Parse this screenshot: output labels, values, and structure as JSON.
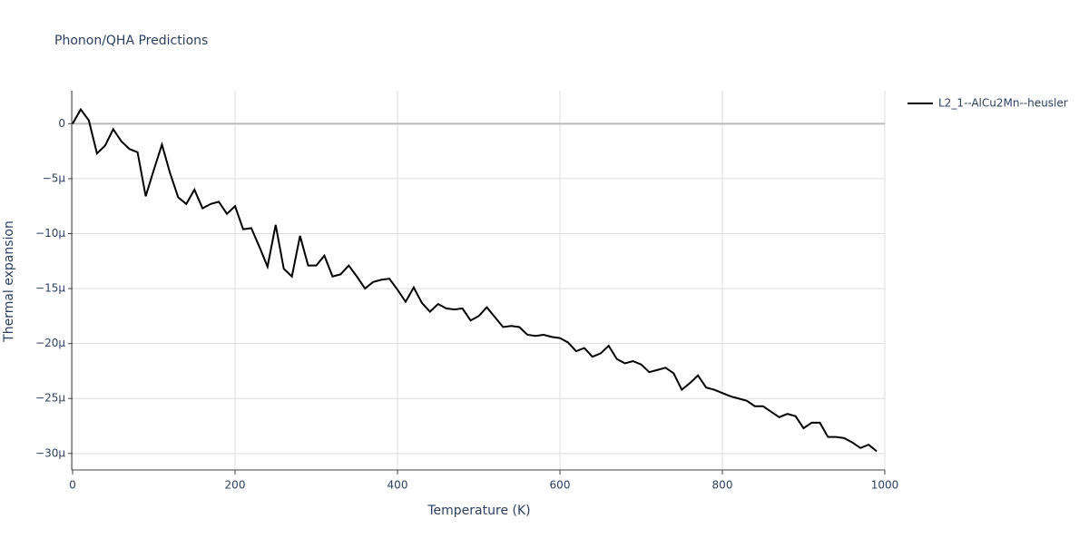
{
  "chart_data": {
    "type": "line",
    "title": "Phonon/QHA Predictions",
    "x_label": "Temperature (K)",
    "y_label": "Thermal expansion",
    "x": [
      0,
      10,
      20,
      30,
      40,
      50,
      60,
      70,
      80,
      90,
      100,
      110,
      120,
      130,
      140,
      150,
      160,
      170,
      180,
      190,
      200,
      210,
      220,
      230,
      240,
      250,
      260,
      270,
      280,
      290,
      300,
      310,
      320,
      330,
      340,
      350,
      360,
      370,
      380,
      390,
      400,
      410,
      420,
      430,
      440,
      450,
      460,
      470,
      480,
      490,
      500,
      510,
      520,
      530,
      540,
      550,
      560,
      570,
      580,
      590,
      600,
      610,
      620,
      630,
      640,
      650,
      660,
      670,
      680,
      690,
      700,
      710,
      720,
      730,
      740,
      750,
      760,
      770,
      780,
      790,
      800,
      810,
      820,
      830,
      840,
      850,
      860,
      870,
      880,
      890,
      900,
      910,
      920,
      930,
      940,
      950,
      960,
      970,
      980,
      990
    ],
    "series": [
      {
        "name": "L2_1--AlCu2Mn--heusler",
        "color": "#000000",
        "values": [
          0,
          1.3e-06,
          3e-07,
          -2.7e-06,
          -2e-06,
          -5e-07,
          -1.6e-06,
          -2.3e-06,
          -2.6e-06,
          -6.6e-06,
          -4.2e-06,
          -1.9e-06,
          -4.5e-06,
          -6.7e-06,
          -7.3e-06,
          -6e-06,
          -7.7e-06,
          -7.3e-06,
          -7.1e-06,
          -8.2e-06,
          -7.5e-06,
          -9.6e-06,
          -9.5e-06,
          -1.12e-05,
          -1.3e-05,
          -9.2e-06,
          -1.32e-05,
          -1.39e-05,
          -1.02e-05,
          -1.29e-05,
          -1.29e-05,
          -1.2e-05,
          -1.39e-05,
          -1.37e-05,
          -1.29e-05,
          -1.39e-05,
          -1.5e-05,
          -1.44e-05,
          -1.42e-05,
          -1.41e-05,
          -1.51e-05,
          -1.62e-05,
          -1.49e-05,
          -1.63e-05,
          -1.71e-05,
          -1.64e-05,
          -1.68e-05,
          -1.69e-05,
          -1.68e-05,
          -1.79e-05,
          -1.75e-05,
          -1.67e-05,
          -1.76e-05,
          -1.85e-05,
          -1.84e-05,
          -1.85e-05,
          -1.92e-05,
          -1.93e-05,
          -1.92e-05,
          -1.94e-05,
          -1.95e-05,
          -1.99e-05,
          -2.07e-05,
          -2.04e-05,
          -2.12e-05,
          -2.09e-05,
          -2.02e-05,
          -2.14e-05,
          -2.18e-05,
          -2.16e-05,
          -2.19e-05,
          -2.26e-05,
          -2.24e-05,
          -2.22e-05,
          -2.27e-05,
          -2.42e-05,
          -2.36e-05,
          -2.29e-05,
          -2.4e-05,
          -2.42e-05,
          -2.45e-05,
          -2.48e-05,
          -2.5e-05,
          -2.52e-05,
          -2.57e-05,
          -2.57e-05,
          -2.62e-05,
          -2.67e-05,
          -2.64e-05,
          -2.66e-05,
          -2.77e-05,
          -2.72e-05,
          -2.72e-05,
          -2.85e-05,
          -2.85e-05,
          -2.86e-05,
          -2.9e-05,
          -2.95e-05,
          -2.92e-05,
          -2.98e-05
        ]
      }
    ],
    "xlim": [
      0,
      1000
    ],
    "xticks": [
      0,
      200,
      400,
      600,
      800,
      1000
    ],
    "ylim": [
      -3.15e-05,
      3e-06
    ],
    "yticks": [
      0,
      {
        "value": -5e-06,
        "label": "−5μ"
      },
      {
        "value": -1e-05,
        "label": "−10μ"
      },
      {
        "value": -1.5e-05,
        "label": "−15μ"
      },
      {
        "value": -2e-05,
        "label": "−20μ"
      },
      {
        "value": -2.5e-05,
        "label": "−25μ"
      },
      {
        "value": -3e-05,
        "label": "−30μ"
      }
    ],
    "grid": true,
    "legend": "right"
  }
}
